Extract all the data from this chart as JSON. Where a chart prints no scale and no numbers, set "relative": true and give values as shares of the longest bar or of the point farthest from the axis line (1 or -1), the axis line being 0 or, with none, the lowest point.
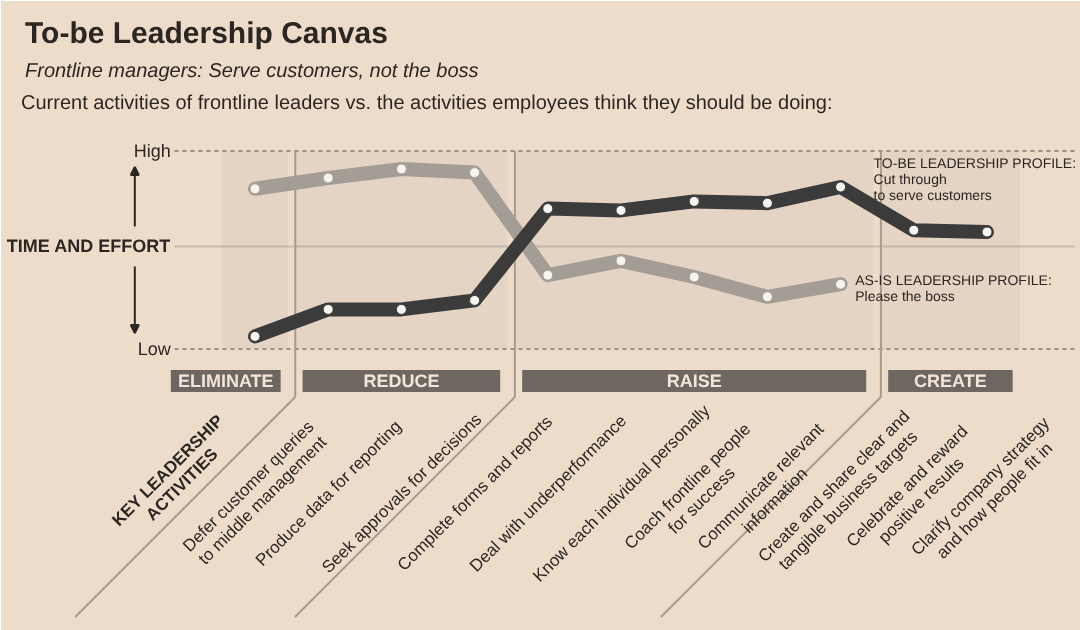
{
  "chart_data": {
    "type": "line",
    "title": "To-be Leadership Canvas",
    "subtitle": "Frontline managers: Serve customers, not the boss",
    "annotations": [
      "Current activities of frontline leaders vs. the activities employees think they should be doing:",
      "High",
      "Low"
    ],
    "xlabel": "KEY LEADERSHIP\nACTIVITIES",
    "ref_lines": [
      {
        "axis": "y",
        "value": 0.57,
        "label": "TIME AND EFFORT",
        "color": "#c9bcb0",
        "line_style": "solid"
      }
    ],
    "categories": [
      "Defer customer queries\nto middle management",
      "Produce data for reporting",
      "Seek approvals for decisions",
      "Complete forms and reports",
      "Deal with underperformance",
      "Know each individual personally",
      "Coach frontline people\nfor success",
      "Communicate relevant\ninformation",
      "Create and share clear and\ntangible business targets",
      "Celebrate and reward\npositive results",
      "Clarify company strategy\nand how people fit in"
    ],
    "relative": true,
    "series": [
      {
        "name": "AS-IS LEADERSHIP PROFILE:\nPlease the boss",
        "color": "#a39d95",
        "values": [
          0.89,
          0.95,
          1.0,
          0.98,
          0.41,
          0.49,
          0.4,
          0.29,
          0.36,
          null,
          null
        ]
      },
      {
        "name": "TO-BE LEADERSHIP PROFILE:\nCut through\nto serve customers",
        "color": "#3b3b3b",
        "values": [
          0.07,
          0.22,
          0.22,
          0.27,
          0.78,
          0.77,
          0.82,
          0.81,
          0.9,
          0.66,
          0.65
        ]
      }
    ],
    "bands": [
      {
        "axis": "x",
        "from": "Defer customer queries\nto middle management",
        "to": "Defer customer queries\nto middle management",
        "label": "ELIMINATE",
        "color": "#6e6660"
      },
      {
        "axis": "x",
        "from": "Produce data for reporting",
        "to": "Complete forms and reports",
        "label": "REDUCE",
        "color": "#6e6660"
      },
      {
        "axis": "x",
        "from": "Deal with underperformance",
        "to": "Create and share clear and\ntangible business targets",
        "label": "RAISE",
        "color": "#6e6660"
      },
      {
        "axis": "x",
        "from": "Celebrate and reward\npositive results",
        "to": "Clarify company strategy\nand how people fit in",
        "label": "CREATE",
        "color": "#6e6660"
      }
    ],
    "marker": "circle",
    "line_style": "solid"
  }
}
